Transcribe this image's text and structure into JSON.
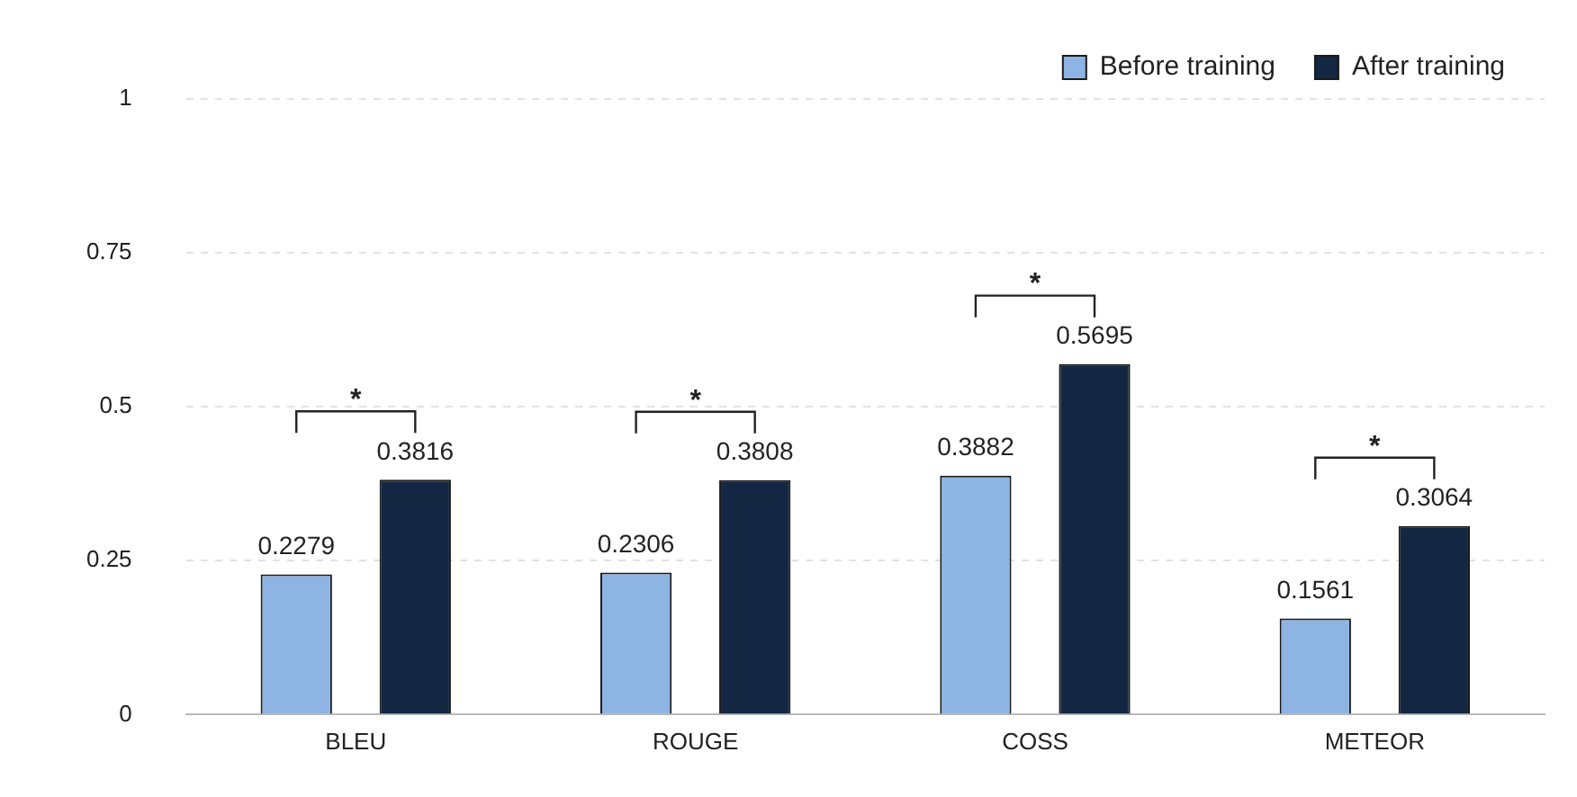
{
  "chart_data": {
    "type": "bar",
    "categories": [
      "BLEU",
      "ROUGE",
      "COSS",
      "METEOR"
    ],
    "series": [
      {
        "name": "Before training",
        "color": "#8eb4e3",
        "values": [
          0.2279,
          0.2306,
          0.3882,
          0.1561
        ]
      },
      {
        "name": "After training",
        "color": "#132743",
        "values": [
          0.3816,
          0.3808,
          0.5695,
          0.3064
        ]
      }
    ],
    "ylim": [
      0,
      1
    ],
    "yticks": [
      0,
      0.25,
      0.5,
      0.75,
      1
    ],
    "grid": "y",
    "legend": "top right",
    "data_labels": true,
    "annotations": [
      "*",
      "*",
      "*",
      "*"
    ]
  }
}
